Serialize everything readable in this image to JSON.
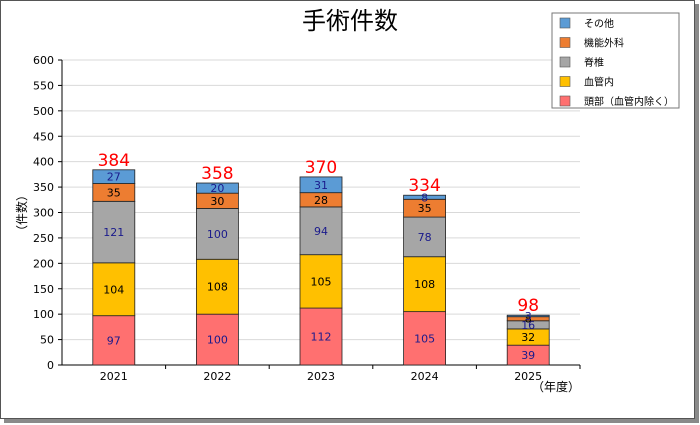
{
  "chart_data": {
    "type": "bar",
    "stacked": true,
    "title": "手術件数",
    "xlabel": "（年度）",
    "ylabel": "（件数）",
    "ylim": [
      0,
      600
    ],
    "ytick_step": 50,
    "grid": true,
    "legend_position": "top-right",
    "categories": [
      "2021",
      "2022",
      "2023",
      "2024",
      "2025"
    ],
    "totals": [
      384,
      358,
      370,
      334,
      98
    ],
    "series": [
      {
        "name": "頭部（血管内除く）",
        "color": "#ff7070",
        "label_color": "#1a1a8c",
        "values": [
          97,
          100,
          112,
          105,
          39
        ]
      },
      {
        "name": "血管内",
        "color": "#ffc000",
        "label_color": "#000000",
        "values": [
          104,
          108,
          105,
          108,
          32
        ]
      },
      {
        "name": "脊椎",
        "color": "#a6a6a6",
        "label_color": "#1a1a8c",
        "values": [
          121,
          100,
          94,
          78,
          16
        ]
      },
      {
        "name": "機能外科",
        "color": "#ed7d31",
        "label_color": "#000000",
        "values": [
          35,
          30,
          28,
          35,
          8
        ]
      },
      {
        "name": "その他",
        "color": "#5b9bd5",
        "label_color": "#1a1a8c",
        "values": [
          27,
          20,
          31,
          8,
          3
        ]
      }
    ],
    "legend_order": [
      "その他",
      "機能外科",
      "脊椎",
      "血管内",
      "頭部（血管内除く）"
    ],
    "total_label_color": "#ff0000"
  }
}
